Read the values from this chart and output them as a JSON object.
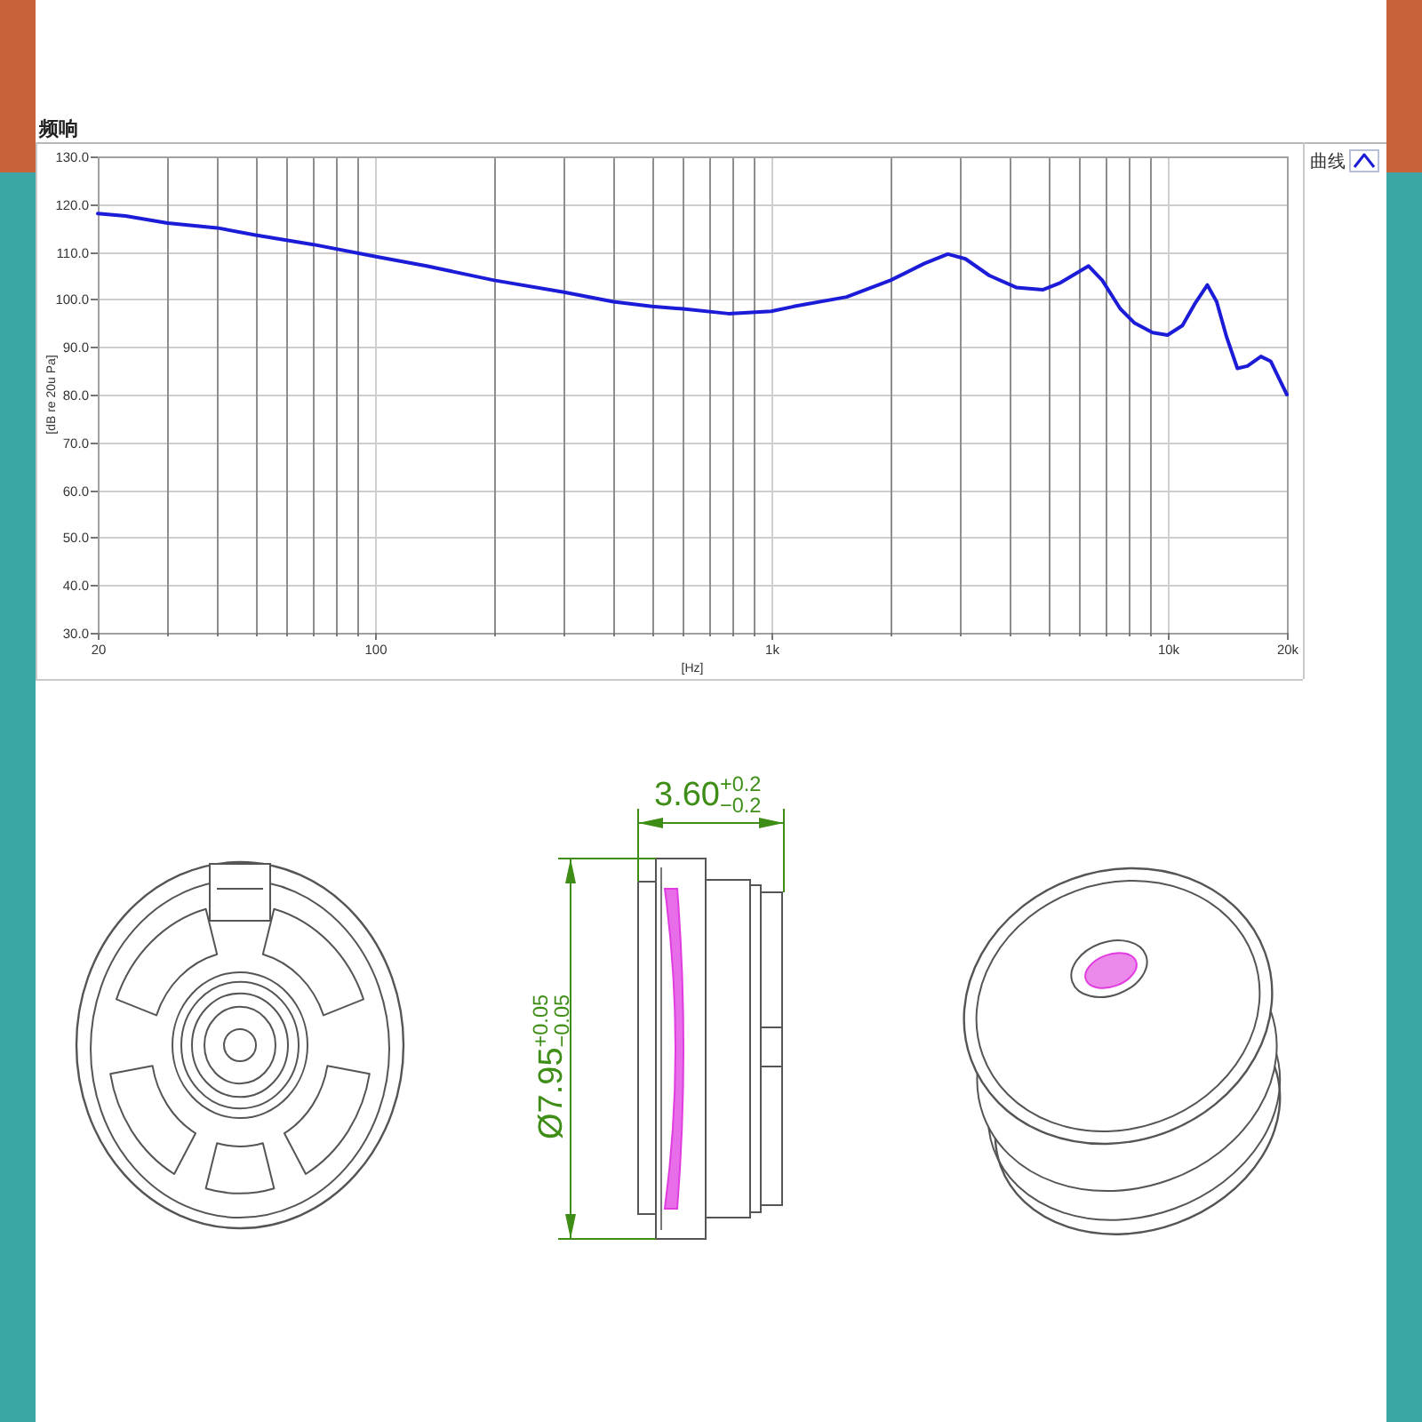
{
  "chart_data": {
    "type": "line",
    "title": "频响",
    "xlabel": "[Hz]",
    "ylabel": "[dB re 20u Pa]",
    "log": "x",
    "x": [
      20,
      23.5,
      30,
      40,
      50,
      70,
      100,
      135,
      200,
      300,
      400,
      500,
      600,
      780,
      1000,
      1140,
      1550,
      2000,
      2430,
      2790,
      3090,
      3550,
      4150,
      4840,
      5370,
      6320,
      6840,
      7600,
      8260,
      9170,
      10000,
      10900,
      11700,
      12600,
      13300,
      14100,
      15000,
      15900,
      17200,
      18200,
      19200,
      20000
    ],
    "series": [
      {
        "name": "曲线",
        "color": "#1c1cd8",
        "values": [
          118,
          117.5,
          116,
          115,
          113.5,
          111.5,
          109,
          107,
          104,
          101.5,
          99.5,
          98.5,
          98,
          97,
          97.5,
          98.5,
          100.5,
          104,
          107.5,
          109.5,
          108.5,
          105,
          102.5,
          102,
          103.5,
          107,
          104,
          98,
          95,
          93,
          92.5,
          94.5,
          99,
          103,
          99.5,
          92,
          85.5,
          86,
          88,
          87,
          83,
          80
        ]
      }
    ],
    "xlim": [
      20,
      20000
    ],
    "xticks": [
      20,
      {
        "value": 30,
        "label": null
      },
      {
        "value": 40,
        "label": null
      },
      {
        "value": 50,
        "label": null
      },
      {
        "value": 60,
        "label": null
      },
      {
        "value": 70,
        "label": null
      },
      {
        "value": 80,
        "label": null
      },
      {
        "value": 90,
        "label": null
      },
      100,
      {
        "value": 200,
        "label": null
      },
      {
        "value": 300,
        "label": null
      },
      {
        "value": 400,
        "label": null
      },
      {
        "value": 500,
        "label": null
      },
      {
        "value": 600,
        "label": null
      },
      {
        "value": 700,
        "label": null
      },
      {
        "value": 800,
        "label": null
      },
      {
        "value": 900,
        "label": null
      },
      {
        "value": 1000,
        "label": "1k"
      },
      {
        "value": 2000,
        "label": null
      },
      {
        "value": 3000,
        "label": null
      },
      {
        "value": 4000,
        "label": null
      },
      {
        "value": 5000,
        "label": null
      },
      {
        "value": 6000,
        "label": null
      },
      {
        "value": 7000,
        "label": null
      },
      {
        "value": 8000,
        "label": null
      },
      {
        "value": 9000,
        "label": null
      },
      {
        "value": 10000,
        "label": "10k"
      },
      {
        "value": 20000,
        "label": "20k"
      }
    ],
    "ylim": [
      30,
      130
    ],
    "yticks": [
      {
        "value": 30,
        "label": "30.0"
      },
      {
        "value": 40,
        "label": "40.0"
      },
      {
        "value": 50,
        "label": "50.0"
      },
      {
        "value": 60,
        "label": "60.0"
      },
      {
        "value": 70,
        "label": "70.0"
      },
      {
        "value": 80,
        "label": "80.0"
      },
      {
        "value": 90,
        "label": "90.0"
      },
      {
        "value": 100,
        "label": "100.0"
      },
      {
        "value": 110,
        "label": "110.0"
      },
      {
        "value": 120,
        "label": "120.0"
      },
      {
        "value": 130,
        "label": "130.0"
      }
    ],
    "grid": true,
    "legend": "top right",
    "annotations": [
      "3.60$^{+0.2}$$_{−0.2}$",
      "Ø7.95$^{+0.05}$$_{−0.05}$"
    ]
  }
}
